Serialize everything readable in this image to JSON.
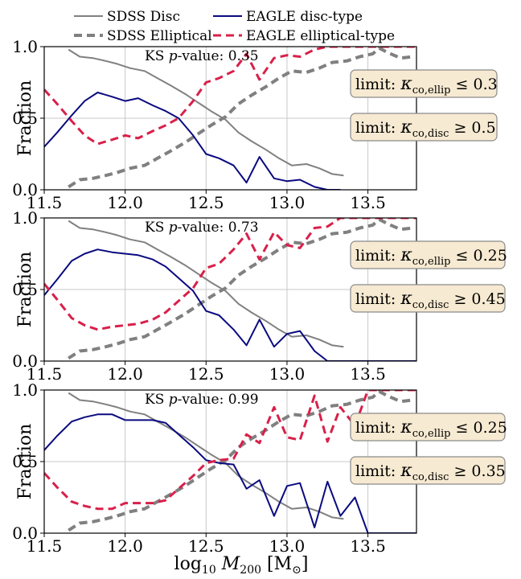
{
  "legend": {
    "sdss_disc": "SDSS Disc",
    "eagle_disc": "EAGLE disc-type",
    "sdss_ellip": "SDSS Elliptical",
    "eagle_ellip": "EAGLE elliptical-type"
  },
  "x_axis_label": "log₁₀ M₂₀₀ [M⊙]",
  "y_axis_label": "Fraction",
  "colors": {
    "sdss_disc": "#808080",
    "sdss_ellip": "#808080",
    "eagle_disc": "#0a0a80",
    "eagle_ellip": "#d8204a",
    "box_fill": "#f7ead2",
    "box_stroke": "#8a8a8a",
    "grid": "#c8c8c8"
  },
  "chart_data": [
    {
      "type": "line",
      "panel": 1,
      "ks_text": "KS p-value: 0.35",
      "ks_prefix": "KS ",
      "ks_p": "p",
      "ks_suffix": "-value: 0.35",
      "limit_ellip": "limit: κ_co,ellip ≤ 0.3",
      "limit_ellip_value": "0.3",
      "limit_disc": "limit: κ_co,disc ≥ 0.5",
      "limit_disc_value": "0.5",
      "xlim": [
        11.5,
        13.8
      ],
      "ylim": [
        0,
        1
      ],
      "xticks": [
        "11.5",
        "12.0",
        "12.5",
        "13.0",
        "13.5"
      ],
      "xtick_values": [
        11.5,
        12.0,
        12.5,
        13.0,
        13.5
      ],
      "yticks": [
        "0.0",
        "0.5",
        "1.0"
      ],
      "ytick_values": [
        0.0,
        0.5,
        1.0
      ],
      "series": [
        {
          "name": "SDSS Disc",
          "x": [
            11.65,
            11.72,
            11.8,
            11.88,
            11.95,
            12.03,
            12.12,
            12.2,
            12.28,
            12.37,
            12.45,
            12.53,
            12.62,
            12.7,
            12.78,
            12.87,
            12.95,
            13.03,
            13.12,
            13.2,
            13.28,
            13.35
          ],
          "y": [
            0.98,
            0.93,
            0.92,
            0.9,
            0.88,
            0.85,
            0.83,
            0.78,
            0.73,
            0.67,
            0.61,
            0.55,
            0.49,
            0.4,
            0.34,
            0.28,
            0.22,
            0.17,
            0.18,
            0.15,
            0.11,
            0.1
          ]
        },
        {
          "name": "SDSS Elliptical",
          "x": [
            11.65,
            11.72,
            11.8,
            11.88,
            11.95,
            12.03,
            12.12,
            12.2,
            12.28,
            12.37,
            12.45,
            12.53,
            12.62,
            12.7,
            12.78,
            12.87,
            12.95,
            13.03,
            13.12,
            13.2,
            13.28,
            13.37,
            13.45,
            13.53,
            13.57,
            13.62,
            13.7,
            13.78
          ],
          "y": [
            0.02,
            0.07,
            0.08,
            0.1,
            0.12,
            0.15,
            0.17,
            0.22,
            0.27,
            0.33,
            0.39,
            0.45,
            0.51,
            0.6,
            0.66,
            0.72,
            0.78,
            0.83,
            0.82,
            0.85,
            0.89,
            0.9,
            0.93,
            0.95,
            0.99,
            0.96,
            0.92,
            0.93
          ]
        },
        {
          "name": "EAGLE disc-type",
          "x": [
            11.5,
            11.58,
            11.67,
            11.75,
            11.83,
            11.92,
            12.0,
            12.08,
            12.17,
            12.25,
            12.33,
            12.42,
            12.5,
            12.58,
            12.67,
            12.75,
            12.83,
            12.92,
            13.0,
            13.08,
            13.17,
            13.25,
            13.33
          ],
          "y": [
            0.3,
            0.4,
            0.52,
            0.62,
            0.68,
            0.65,
            0.62,
            0.64,
            0.59,
            0.55,
            0.5,
            0.38,
            0.25,
            0.22,
            0.17,
            0.05,
            0.23,
            0.08,
            0.06,
            0.07,
            0.02,
            0.0,
            0.0
          ]
        },
        {
          "name": "EAGLE elliptical-type",
          "x": [
            11.5,
            11.58,
            11.67,
            11.75,
            11.83,
            11.92,
            12.0,
            12.08,
            12.17,
            12.25,
            12.33,
            12.42,
            12.5,
            12.58,
            12.67,
            12.75,
            12.83,
            12.92,
            13.0,
            13.08,
            13.17,
            13.25,
            13.33,
            13.42,
            13.5,
            13.58,
            13.67,
            13.75,
            13.8
          ],
          "y": [
            0.7,
            0.6,
            0.48,
            0.38,
            0.32,
            0.35,
            0.38,
            0.36,
            0.41,
            0.45,
            0.5,
            0.62,
            0.75,
            0.78,
            0.83,
            0.95,
            0.77,
            0.92,
            0.94,
            0.93,
            0.98,
            1.0,
            1.0,
            1.0,
            1.0,
            1.0,
            1.0,
            1.0,
            1.0
          ]
        }
      ]
    },
    {
      "type": "line",
      "panel": 2,
      "ks_text": "KS p-value: 0.73",
      "ks_prefix": "KS ",
      "ks_p": "p",
      "ks_suffix": "-value: 0.73",
      "limit_ellip": "limit: κ_co,ellip ≤ 0.25",
      "limit_ellip_value": "0.25",
      "limit_disc": "limit: κ_co,disc ≥ 0.45",
      "limit_disc_value": "0.45",
      "xlim": [
        11.5,
        13.8
      ],
      "ylim": [
        0,
        1
      ],
      "xticks": [
        "11.5",
        "12.0",
        "12.5",
        "13.0",
        "13.5"
      ],
      "xtick_values": [
        11.5,
        12.0,
        12.5,
        13.0,
        13.5
      ],
      "yticks": [
        "0.0",
        "0.5",
        "1.0"
      ],
      "ytick_values": [
        0.0,
        0.5,
        1.0
      ],
      "series": [
        {
          "name": "SDSS Disc",
          "x": [
            11.65,
            11.72,
            11.8,
            11.88,
            11.95,
            12.03,
            12.12,
            12.2,
            12.28,
            12.37,
            12.45,
            12.53,
            12.62,
            12.7,
            12.78,
            12.87,
            12.95,
            13.03,
            13.12,
            13.2,
            13.28,
            13.35
          ],
          "y": [
            0.98,
            0.93,
            0.92,
            0.9,
            0.88,
            0.85,
            0.83,
            0.78,
            0.73,
            0.67,
            0.61,
            0.55,
            0.49,
            0.4,
            0.34,
            0.28,
            0.22,
            0.17,
            0.18,
            0.15,
            0.11,
            0.1
          ]
        },
        {
          "name": "SDSS Elliptical",
          "x": [
            11.65,
            11.72,
            11.8,
            11.88,
            11.95,
            12.03,
            12.12,
            12.2,
            12.28,
            12.37,
            12.45,
            12.53,
            12.62,
            12.7,
            12.78,
            12.87,
            12.95,
            13.03,
            13.12,
            13.2,
            13.28,
            13.37,
            13.45,
            13.53,
            13.57,
            13.62,
            13.7,
            13.78
          ],
          "y": [
            0.02,
            0.07,
            0.08,
            0.1,
            0.12,
            0.15,
            0.17,
            0.22,
            0.27,
            0.33,
            0.39,
            0.45,
            0.51,
            0.6,
            0.66,
            0.72,
            0.78,
            0.83,
            0.82,
            0.85,
            0.89,
            0.9,
            0.93,
            0.95,
            0.99,
            0.96,
            0.92,
            0.93
          ]
        },
        {
          "name": "EAGLE disc-type",
          "x": [
            11.5,
            11.58,
            11.67,
            11.75,
            11.83,
            11.92,
            12.0,
            12.08,
            12.17,
            12.25,
            12.33,
            12.42,
            12.5,
            12.58,
            12.67,
            12.75,
            12.83,
            12.92,
            13.0,
            13.08,
            13.17,
            13.25,
            13.33,
            13.42,
            13.5,
            13.58,
            13.67,
            13.75,
            13.8
          ],
          "y": [
            0.46,
            0.57,
            0.7,
            0.75,
            0.78,
            0.76,
            0.75,
            0.74,
            0.71,
            0.66,
            0.58,
            0.49,
            0.35,
            0.32,
            0.22,
            0.11,
            0.29,
            0.1,
            0.19,
            0.21,
            0.07,
            0.0,
            0.0,
            0.0,
            0.0,
            0.0,
            0.0,
            0.0,
            0.0
          ]
        },
        {
          "name": "EAGLE elliptical-type",
          "x": [
            11.5,
            11.58,
            11.67,
            11.75,
            11.83,
            11.92,
            12.0,
            12.08,
            12.17,
            12.25,
            12.33,
            12.42,
            12.5,
            12.58,
            12.67,
            12.75,
            12.83,
            12.92,
            13.0,
            13.08,
            13.17,
            13.25,
            13.33,
            13.42,
            13.5,
            13.58,
            13.67,
            13.75,
            13.8
          ],
          "y": [
            0.54,
            0.43,
            0.3,
            0.25,
            0.22,
            0.24,
            0.25,
            0.26,
            0.29,
            0.34,
            0.42,
            0.51,
            0.65,
            0.68,
            0.78,
            0.89,
            0.71,
            0.9,
            0.81,
            0.79,
            0.93,
            0.94,
            1.0,
            1.0,
            1.0,
            1.0,
            1.0,
            1.0,
            1.0
          ]
        }
      ]
    },
    {
      "type": "line",
      "panel": 3,
      "ks_text": "KS p-value: 0.99",
      "ks_prefix": "KS ",
      "ks_p": "p",
      "ks_suffix": "-value: 0.99",
      "limit_ellip": "limit: κ_co,ellip ≤ 0.25",
      "limit_ellip_value": "0.25",
      "limit_disc": "limit: κ_co,disc ≥ 0.35",
      "limit_disc_value": "0.35",
      "xlim": [
        11.5,
        13.8
      ],
      "ylim": [
        0,
        1
      ],
      "xticks": [
        "11.5",
        "12.0",
        "12.5",
        "13.0",
        "13.5"
      ],
      "xtick_values": [
        11.5,
        12.0,
        12.5,
        13.0,
        13.5
      ],
      "yticks": [
        "0.0",
        "0.5",
        "1.0"
      ],
      "ytick_values": [
        0.0,
        0.5,
        1.0
      ],
      "series": [
        {
          "name": "SDSS Disc",
          "x": [
            11.65,
            11.72,
            11.8,
            11.88,
            11.95,
            12.03,
            12.12,
            12.2,
            12.28,
            12.37,
            12.45,
            12.53,
            12.62,
            12.7,
            12.78,
            12.87,
            12.95,
            13.03,
            13.12,
            13.2,
            13.28,
            13.35
          ],
          "y": [
            0.98,
            0.93,
            0.92,
            0.9,
            0.88,
            0.85,
            0.83,
            0.78,
            0.73,
            0.67,
            0.61,
            0.55,
            0.49,
            0.4,
            0.34,
            0.28,
            0.22,
            0.17,
            0.18,
            0.15,
            0.11,
            0.1
          ]
        },
        {
          "name": "SDSS Elliptical",
          "x": [
            11.65,
            11.72,
            11.8,
            11.88,
            11.95,
            12.03,
            12.12,
            12.2,
            12.28,
            12.37,
            12.45,
            12.53,
            12.62,
            12.7,
            12.78,
            12.87,
            12.95,
            13.03,
            13.12,
            13.2,
            13.28,
            13.37,
            13.45,
            13.53,
            13.57,
            13.62,
            13.7,
            13.78
          ],
          "y": [
            0.02,
            0.07,
            0.08,
            0.1,
            0.12,
            0.15,
            0.17,
            0.22,
            0.27,
            0.33,
            0.39,
            0.45,
            0.51,
            0.6,
            0.66,
            0.72,
            0.78,
            0.83,
            0.82,
            0.85,
            0.89,
            0.9,
            0.93,
            0.95,
            0.99,
            0.96,
            0.92,
            0.93
          ]
        },
        {
          "name": "EAGLE disc-type",
          "x": [
            11.5,
            11.58,
            11.67,
            11.75,
            11.83,
            11.92,
            12.0,
            12.08,
            12.17,
            12.25,
            12.33,
            12.42,
            12.5,
            12.58,
            12.67,
            12.75,
            12.83,
            12.92,
            13.0,
            13.08,
            13.17,
            13.25,
            13.33,
            13.42,
            13.5,
            13.58,
            13.67,
            13.75,
            13.8
          ],
          "y": [
            0.58,
            0.68,
            0.78,
            0.81,
            0.83,
            0.83,
            0.79,
            0.79,
            0.79,
            0.77,
            0.69,
            0.6,
            0.51,
            0.49,
            0.48,
            0.31,
            0.37,
            0.12,
            0.33,
            0.35,
            0.04,
            0.36,
            0.12,
            0.25,
            0.0,
            0.0,
            0.0,
            0.0,
            0.0
          ]
        },
        {
          "name": "EAGLE elliptical-type",
          "x": [
            11.5,
            11.58,
            11.67,
            11.75,
            11.83,
            11.92,
            12.0,
            12.08,
            12.17,
            12.25,
            12.33,
            12.42,
            12.5,
            12.58,
            12.67,
            12.75,
            12.83,
            12.92,
            13.0,
            13.08,
            13.17,
            13.25,
            13.33,
            13.42,
            13.5,
            13.58,
            13.67,
            13.75,
            13.8
          ],
          "y": [
            0.42,
            0.32,
            0.22,
            0.19,
            0.17,
            0.17,
            0.21,
            0.21,
            0.21,
            0.23,
            0.31,
            0.4,
            0.49,
            0.51,
            0.52,
            0.69,
            0.63,
            0.88,
            0.67,
            0.65,
            0.96,
            0.64,
            0.88,
            0.75,
            1.0,
            1.0,
            1.0,
            1.0,
            1.0
          ]
        }
      ]
    }
  ]
}
